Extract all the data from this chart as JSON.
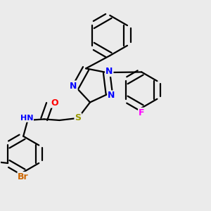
{
  "background_color": "#ebebeb",
  "line_color": "#000000",
  "bond_width": 1.6,
  "atom_colors": {
    "N": "#0000FF",
    "O": "#FF0000",
    "S": "#999900",
    "Br": "#CC6600",
    "F": "#FF00FF",
    "H": "#555555",
    "C": "#000000"
  },
  "font_size_atom": 9,
  "font_size_small": 8
}
